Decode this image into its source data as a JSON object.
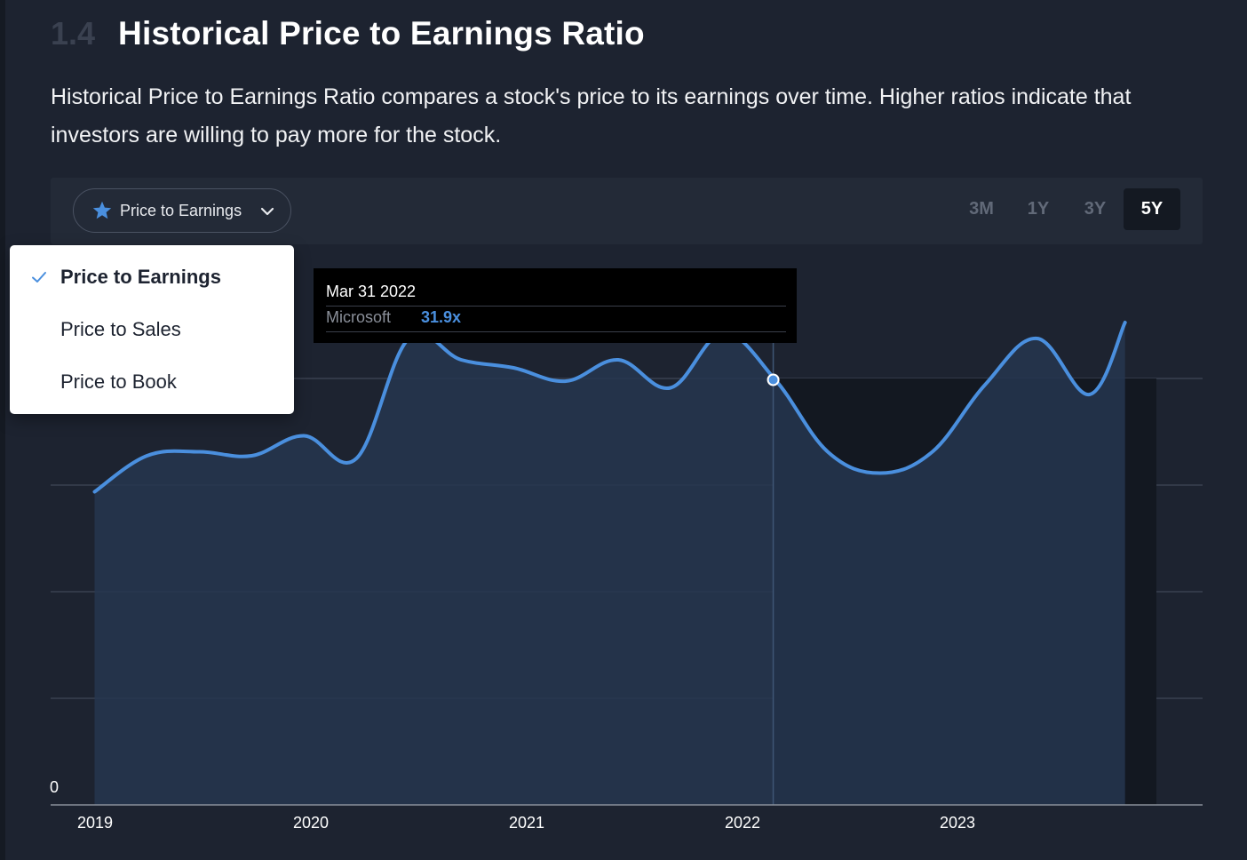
{
  "section": {
    "number": "1.4",
    "title": "Historical Price to Earnings Ratio",
    "description": "Historical Price to Earnings Ratio compares a stock's price to its earnings over time. Higher ratios indicate that investors are willing to pay more for the stock."
  },
  "metric_select": {
    "label": "Price to Earnings",
    "icon": "star-icon",
    "options": [
      {
        "label": "Price to Earnings",
        "selected": true
      },
      {
        "label": "Price to Sales",
        "selected": false
      },
      {
        "label": "Price to Book",
        "selected": false
      }
    ]
  },
  "range_tabs": [
    {
      "label": "3M",
      "active": false
    },
    {
      "label": "1Y",
      "active": false
    },
    {
      "label": "3Y",
      "active": false
    },
    {
      "label": "5Y",
      "active": true
    }
  ],
  "tooltip": {
    "date": "Mar 31 2022",
    "series": "Microsoft",
    "value": "31.9x"
  },
  "colors": {
    "background": "#1d2330",
    "line": "#4a8fde",
    "area": "#26364f",
    "tooltip_value": "#4a8fde"
  },
  "chart_data": {
    "type": "area",
    "series": [
      {
        "name": "Microsoft",
        "points": [
          [
            2019.0,
            23.5
          ],
          [
            2019.25,
            26.2
          ],
          [
            2019.5,
            26.5
          ],
          [
            2019.75,
            26.2
          ],
          [
            2020.0,
            27.7
          ],
          [
            2020.25,
            26.0
          ],
          [
            2020.5,
            35.0
          ],
          [
            2020.75,
            33.4
          ],
          [
            2021.0,
            32.8
          ],
          [
            2021.25,
            31.8
          ],
          [
            2021.5,
            33.4
          ],
          [
            2021.75,
            31.3
          ],
          [
            2022.0,
            35.4
          ],
          [
            2022.25,
            31.9
          ],
          [
            2022.5,
            26.5
          ],
          [
            2022.75,
            24.9
          ],
          [
            2023.0,
            26.5
          ],
          [
            2023.25,
            31.5
          ],
          [
            2023.5,
            35.0
          ],
          [
            2023.75,
            30.8
          ],
          [
            2023.92,
            36.2
          ]
        ]
      }
    ],
    "x_ticks": [
      "2019",
      "2020",
      "2021",
      "2022",
      "2023"
    ],
    "y_ticks": [
      "0"
    ],
    "xlim": [
      2018.79,
      2024.29
    ],
    "ylim": [
      0,
      40
    ],
    "highlight_x": 2022.24,
    "grid": true
  }
}
